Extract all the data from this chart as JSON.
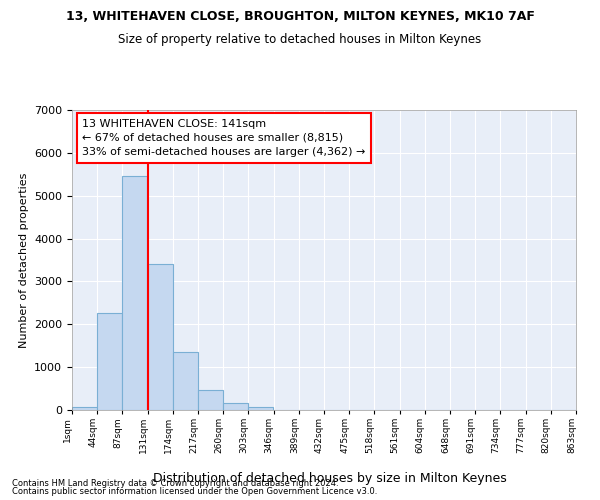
{
  "title1": "13, WHITEHAVEN CLOSE, BROUGHTON, MILTON KEYNES, MK10 7AF",
  "title2": "Size of property relative to detached houses in Milton Keynes",
  "xlabel": "Distribution of detached houses by size in Milton Keynes",
  "ylabel": "Number of detached properties",
  "footer1": "Contains HM Land Registry data © Crown copyright and database right 2024.",
  "footer2": "Contains public sector information licensed under the Open Government Licence v3.0.",
  "bar_color": "#c5d8f0",
  "bar_edgecolor": "#7aafd4",
  "background_color": "#e8eef8",
  "grid_color": "#ffffff",
  "ann_line1": "13 WHITEHAVEN CLOSE: 141sqm",
  "ann_line2": "← 67% of detached houses are smaller (8,815)",
  "ann_line3": "33% of semi-detached houses are larger (4,362) →",
  "property_size_idx": 3,
  "bin_width": 43,
  "bin_starts": [
    1,
    44,
    87,
    130,
    173,
    216,
    259,
    302,
    345,
    388,
    431,
    474,
    517,
    560,
    603,
    646,
    689,
    732,
    775,
    818
  ],
  "bar_values": [
    75,
    2270,
    5460,
    3400,
    1350,
    460,
    170,
    60,
    0,
    0,
    0,
    0,
    0,
    0,
    0,
    0,
    0,
    0,
    0,
    0
  ],
  "ylim": [
    0,
    7000
  ],
  "yticks": [
    0,
    1000,
    2000,
    3000,
    4000,
    5000,
    6000,
    7000
  ],
  "xtick_labels": [
    "1sqm",
    "44sqm",
    "87sqm",
    "131sqm",
    "174sqm",
    "217sqm",
    "260sqm",
    "303sqm",
    "346sqm",
    "389sqm",
    "432sqm",
    "475sqm",
    "518sqm",
    "561sqm",
    "604sqm",
    "648sqm",
    "691sqm",
    "734sqm",
    "777sqm",
    "820sqm",
    "863sqm"
  ]
}
